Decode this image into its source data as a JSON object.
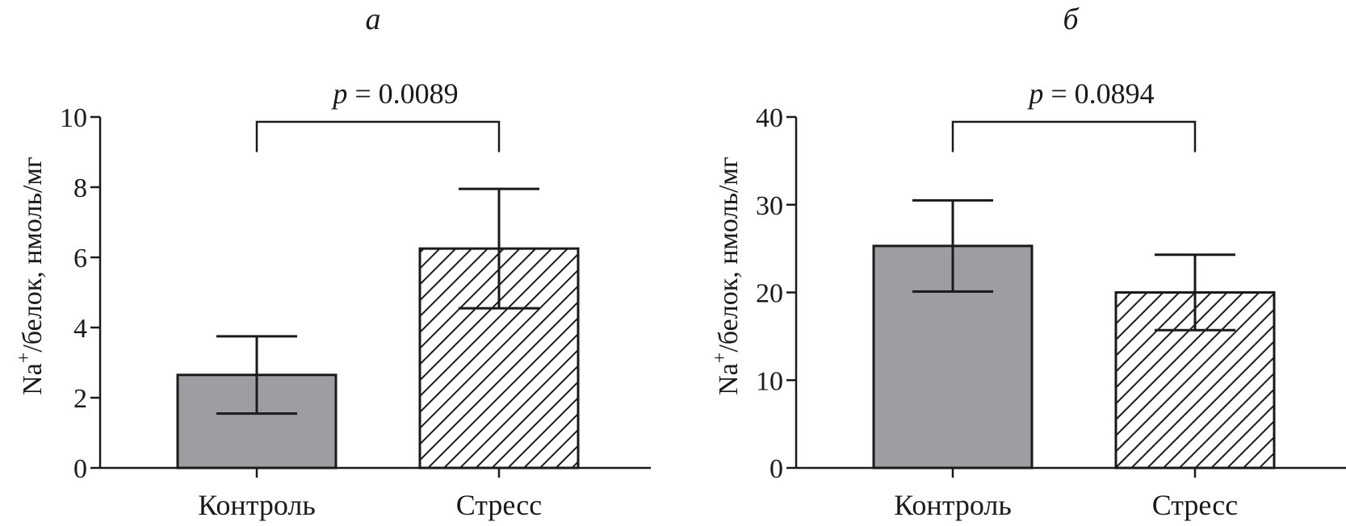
{
  "colors": {
    "solid_bar": "#9d9ea1",
    "outline": "#1a1a1a",
    "hatch": "#1a1a1a",
    "background": "#ffffff"
  },
  "chart_data": [
    {
      "type": "bar",
      "panel_label": "а",
      "title": "",
      "ylabel_main": "Na",
      "ylabel_sup": "+",
      "ylabel_rest": "/белок, нмоль/мг",
      "categories": [
        "Контроль",
        "Стресс"
      ],
      "values": [
        2.65,
        6.25
      ],
      "errors": [
        1.1,
        1.7
      ],
      "bar_styles": [
        "solid",
        "hatched"
      ],
      "ylim": [
        0,
        10
      ],
      "yticks": [
        0,
        2,
        4,
        6,
        8,
        10
      ],
      "grid": false,
      "significance": {
        "p_symbol": "p",
        "p_rest": " = 0.0089",
        "between": [
          0,
          1
        ],
        "bracket_bottom": 9.0
      }
    },
    {
      "type": "bar",
      "panel_label": "б",
      "title": "",
      "ylabel_main": "Na",
      "ylabel_sup": "+",
      "ylabel_rest": "/белок, нмоль/мг",
      "categories": [
        "Контроль",
        "Стресс"
      ],
      "values": [
        25.3,
        20.0
      ],
      "errors": [
        5.2,
        4.3
      ],
      "bar_styles": [
        "solid",
        "hatched"
      ],
      "ylim": [
        0,
        40
      ],
      "yticks": [
        0,
        10,
        20,
        30,
        40
      ],
      "grid": false,
      "significance": {
        "p_symbol": "p",
        "p_rest": " = 0.0894",
        "between": [
          0,
          1
        ],
        "bracket_bottom": 36.0
      }
    }
  ]
}
